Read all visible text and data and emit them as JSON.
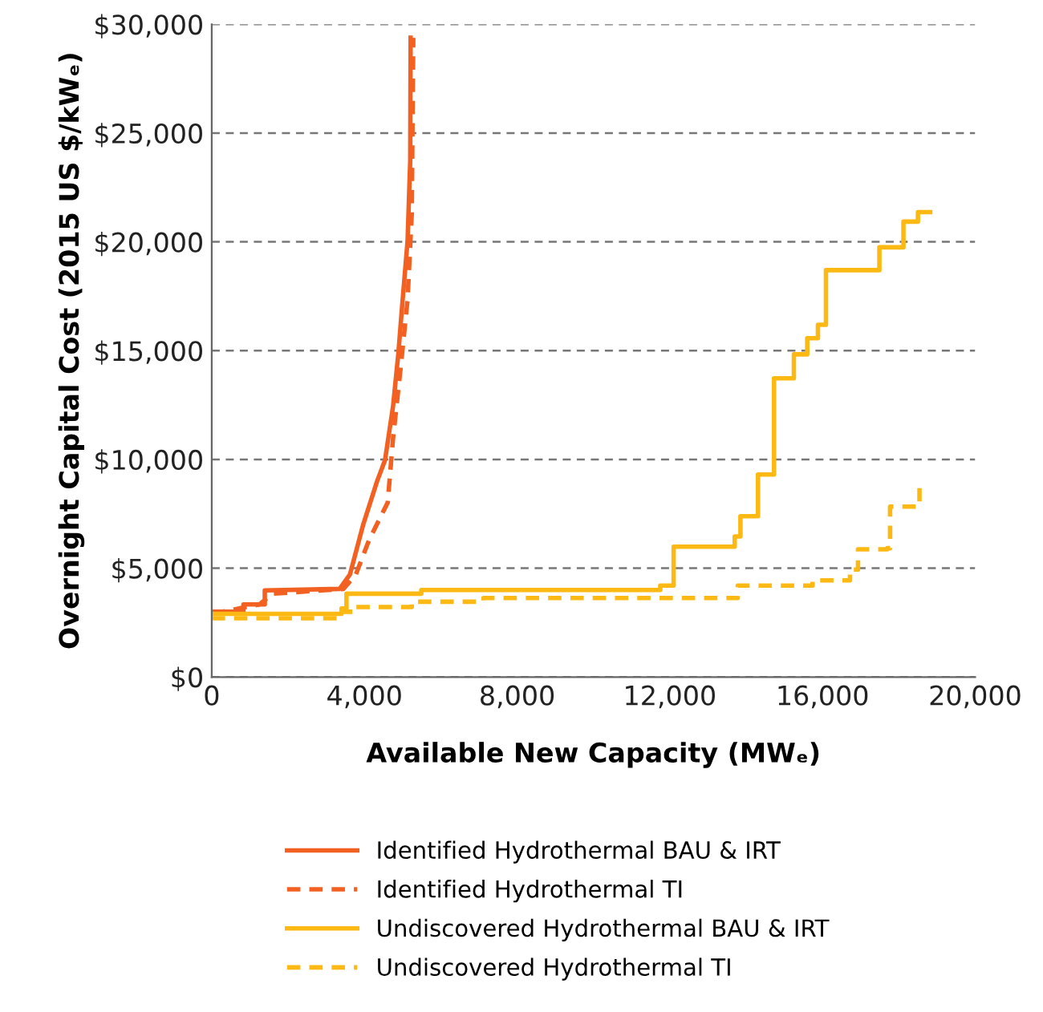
{
  "chart_data": {
    "type": "line",
    "xlabel": "Available New Capacity (MWₑ)",
    "ylabel": "Overnight Capital Cost (2015 US $/kWₑ)",
    "xlim": [
      0,
      20000
    ],
    "xticks": [
      {
        "value": 0,
        "label": "0"
      },
      {
        "value": 4000,
        "label": "4,000"
      },
      {
        "value": 8000,
        "label": "8,000"
      },
      {
        "value": 12000,
        "label": "12,000"
      },
      {
        "value": 16000,
        "label": "16,000"
      },
      {
        "value": 20000,
        "label": "20,000"
      }
    ],
    "ylim": [
      0,
      30000
    ],
    "yticks": [
      {
        "value": 0,
        "label": "$0"
      },
      {
        "value": 5000,
        "label": "$5,000"
      },
      {
        "value": 10000,
        "label": "$10,000"
      },
      {
        "value": 15000,
        "label": "$15,000"
      },
      {
        "value": 20000,
        "label": "$20,000"
      },
      {
        "value": 25000,
        "label": "$25,000"
      },
      {
        "value": 30000,
        "label": "$30,000"
      }
    ],
    "grid": "y",
    "legend": "bottom",
    "series": [
      {
        "name": "Identified Hydrothermal BAU & IRT",
        "color": "#f26122",
        "line_style": "solid",
        "x": [
          0,
          830,
          830,
          1390,
          1390,
          3350,
          3620,
          3970,
          4330,
          4540,
          4750,
          4890,
          4990,
          5130,
          5200,
          5210
        ],
        "values": [
          3000,
          3000,
          3340,
          3340,
          3980,
          4050,
          4710,
          7020,
          8990,
          9970,
          12440,
          14890,
          17100,
          20040,
          23730,
          29380
        ]
      },
      {
        "name": "Identified Hydrothermal TI",
        "color": "#f26122",
        "line_style": "dashed",
        "x": [
          0,
          1250,
          1600,
          3450,
          3770,
          4120,
          4610,
          4750,
          4960,
          5130,
          5240,
          5280
        ],
        "values": [
          2900,
          3340,
          3830,
          4050,
          4690,
          6290,
          8020,
          10970,
          14390,
          17340,
          21280,
          29380
        ]
      },
      {
        "name": "Undiscovered Hydrothermal BAU & IRT",
        "color": "#fdb913",
        "type": "step",
        "line_style": "solid",
        "x": [
          0,
          3400,
          3530,
          5490,
          11750,
          12100,
          13700,
          13850,
          14310,
          14730,
          15250,
          15600,
          15880,
          16090,
          17490,
          18120,
          18500,
          18820
        ],
        "values": [
          2900,
          3150,
          3830,
          4000,
          4200,
          5990,
          6460,
          7390,
          9310,
          13730,
          14830,
          15570,
          16190,
          18700,
          19750,
          20930,
          21370,
          21370
        ]
      },
      {
        "name": "Undiscovered Hydrothermal TI",
        "color": "#fdb913",
        "type": "step",
        "line_style": "dashed",
        "x": [
          0,
          3400,
          3700,
          5240,
          7120,
          13500,
          13780,
          15740,
          16720,
          16930,
          17700,
          17770,
          18540,
          18610
        ],
        "values": [
          2700,
          3000,
          3220,
          3460,
          3630,
          3630,
          4200,
          4440,
          4940,
          5870,
          5920,
          7830,
          8750,
          8870
        ]
      }
    ]
  }
}
